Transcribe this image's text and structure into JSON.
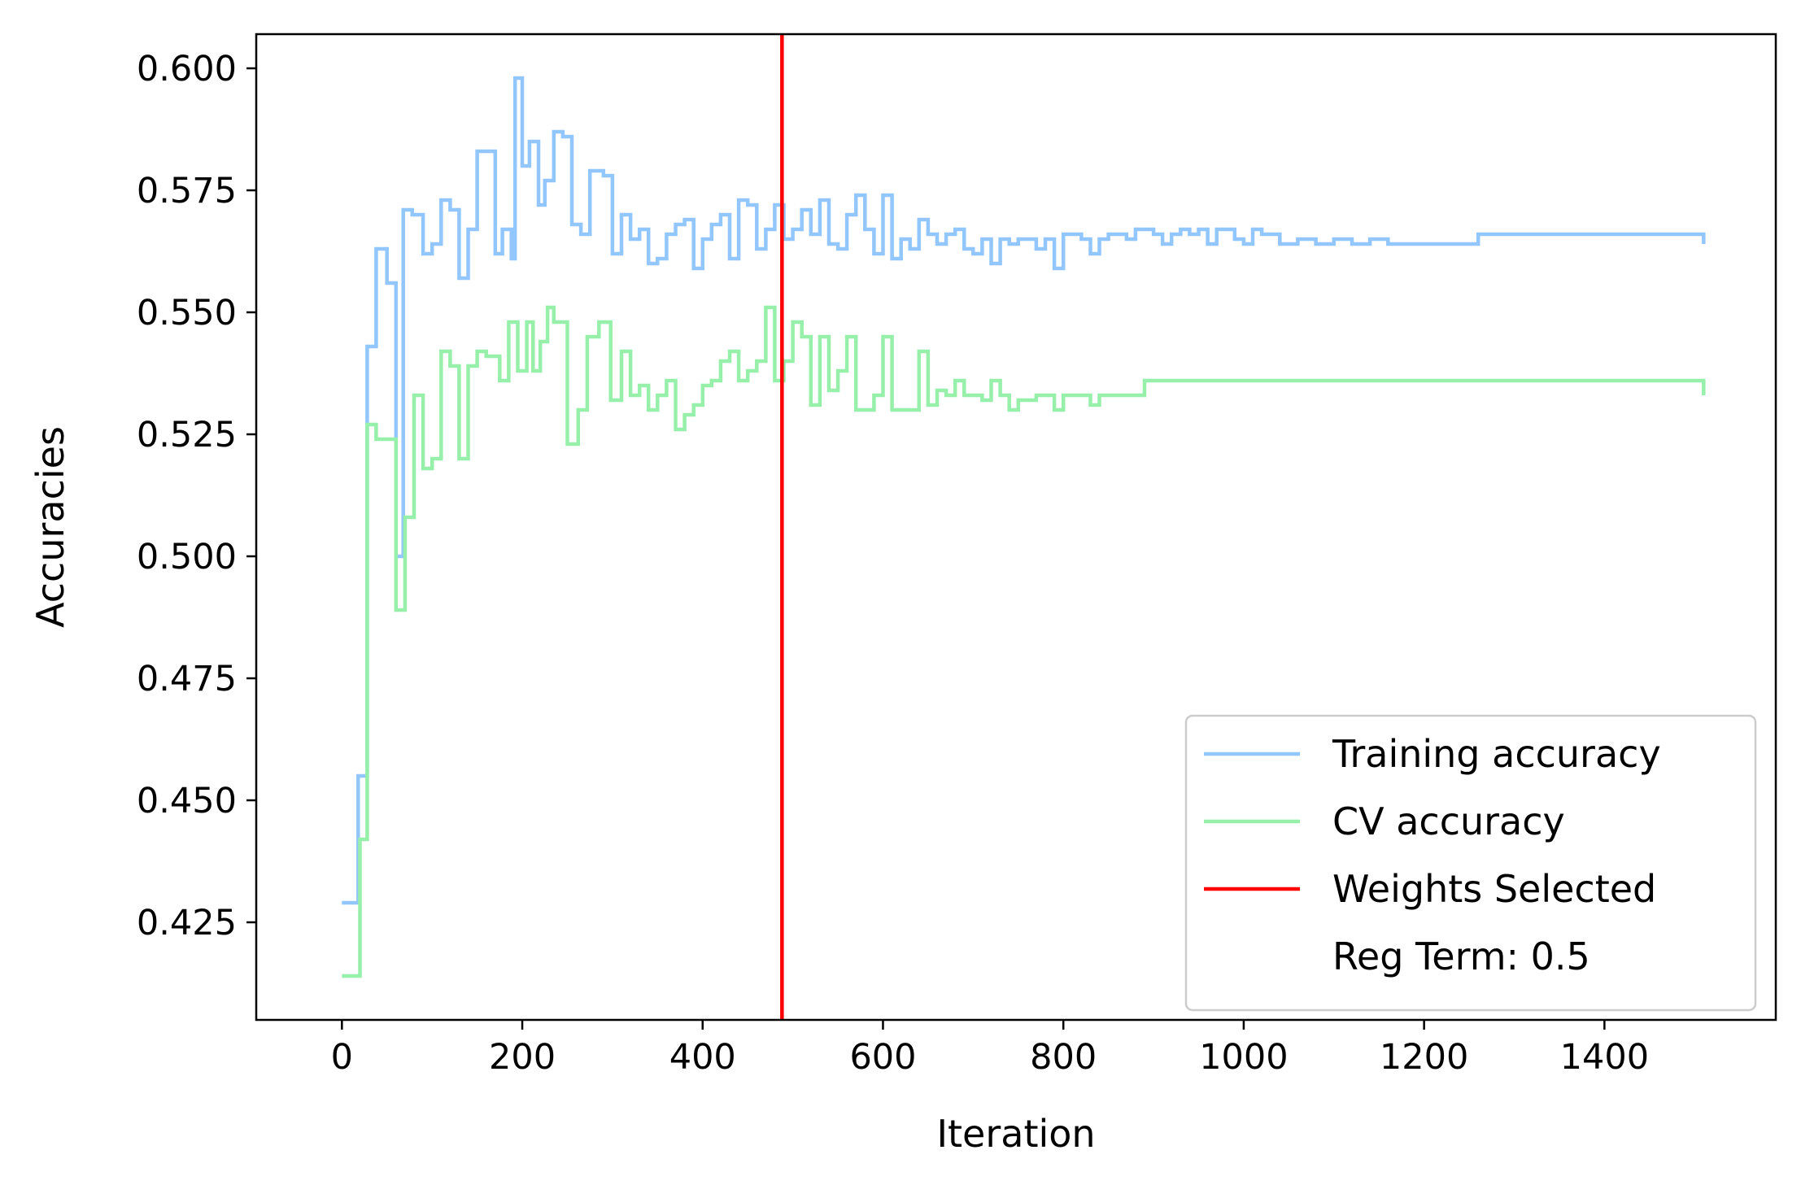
{
  "chart_data": {
    "type": "line",
    "title": "",
    "xlabel": "Iteration",
    "ylabel": "Accuracies",
    "xlim": [
      -95,
      1590
    ],
    "ylim": [
      0.405,
      0.607
    ],
    "xticks": [
      0,
      200,
      400,
      600,
      800,
      1000,
      1200,
      1400
    ],
    "xtick_labels": [
      "0",
      "200",
      "400",
      "600",
      "800",
      "1000",
      "1200",
      "1400"
    ],
    "yticks": [
      0.425,
      0.45,
      0.475,
      0.5,
      0.525,
      0.55,
      0.575,
      0.6
    ],
    "ytick_labels": [
      "0.425",
      "0.450",
      "0.475",
      "0.500",
      "0.525",
      "0.550",
      "0.575",
      "0.600"
    ],
    "grid": false,
    "legend_position": "bottom-right",
    "series": [
      {
        "name": "Training accuracy",
        "color": "#92c6ff",
        "drawstyle": "steps-post",
        "x": [
          0,
          18,
          28,
          38,
          50,
          60,
          68,
          78,
          90,
          100,
          110,
          120,
          130,
          140,
          150,
          170,
          178,
          188,
          192,
          200,
          208,
          218,
          225,
          235,
          245,
          255,
          265,
          275,
          290,
          300,
          310,
          320,
          330,
          340,
          350,
          360,
          370,
          380,
          390,
          400,
          410,
          420,
          430,
          440,
          450,
          460,
          470,
          480,
          490,
          500,
          510,
          520,
          530,
          540,
          550,
          560,
          570,
          580,
          590,
          600,
          610,
          620,
          630,
          640,
          650,
          660,
          670,
          680,
          690,
          700,
          710,
          720,
          730,
          740,
          750,
          760,
          770,
          780,
          790,
          800,
          810,
          820,
          830,
          840,
          850,
          860,
          870,
          880,
          890,
          900,
          910,
          920,
          930,
          940,
          950,
          960,
          970,
          980,
          990,
          1000,
          1010,
          1020,
          1040,
          1060,
          1080,
          1100,
          1120,
          1140,
          1160,
          1200,
          1260,
          1510
        ],
        "y": [
          0.429,
          0.455,
          0.543,
          0.563,
          0.556,
          0.5,
          0.571,
          0.57,
          0.562,
          0.564,
          0.573,
          0.571,
          0.557,
          0.567,
          0.583,
          0.562,
          0.567,
          0.561,
          0.598,
          0.58,
          0.585,
          0.572,
          0.577,
          0.587,
          0.586,
          0.568,
          0.566,
          0.579,
          0.578,
          0.562,
          0.57,
          0.565,
          0.567,
          0.56,
          0.561,
          0.566,
          0.568,
          0.569,
          0.559,
          0.565,
          0.568,
          0.57,
          0.561,
          0.573,
          0.572,
          0.563,
          0.567,
          0.572,
          0.565,
          0.567,
          0.571,
          0.566,
          0.573,
          0.564,
          0.563,
          0.57,
          0.574,
          0.567,
          0.562,
          0.574,
          0.561,
          0.565,
          0.563,
          0.569,
          0.566,
          0.564,
          0.566,
          0.567,
          0.563,
          0.562,
          0.565,
          0.56,
          0.565,
          0.564,
          0.565,
          0.565,
          0.563,
          0.565,
          0.559,
          0.566,
          0.566,
          0.565,
          0.562,
          0.565,
          0.566,
          0.566,
          0.565,
          0.567,
          0.567,
          0.566,
          0.564,
          0.566,
          0.567,
          0.566,
          0.567,
          0.564,
          0.567,
          0.567,
          0.565,
          0.564,
          0.567,
          0.566,
          0.564,
          0.565,
          0.564,
          0.565,
          0.564,
          0.565,
          0.564,
          0.564,
          0.566,
          0.564
        ]
      },
      {
        "name": "CV accuracy",
        "color": "#97f0aa",
        "drawstyle": "steps-post",
        "x": [
          0,
          20,
          28,
          38,
          60,
          70,
          80,
          90,
          100,
          110,
          120,
          130,
          140,
          150,
          160,
          175,
          185,
          195,
          205,
          212,
          220,
          228,
          235,
          250,
          262,
          272,
          285,
          298,
          310,
          320,
          330,
          340,
          350,
          360,
          370,
          380,
          390,
          400,
          410,
          420,
          430,
          440,
          450,
          460,
          470,
          480,
          490,
          500,
          510,
          520,
          530,
          540,
          550,
          560,
          570,
          580,
          590,
          600,
          610,
          620,
          630,
          640,
          650,
          660,
          670,
          680,
          690,
          700,
          710,
          720,
          730,
          740,
          750,
          760,
          770,
          780,
          790,
          800,
          810,
          820,
          830,
          840,
          850,
          860,
          870,
          880,
          890,
          1510
        ],
        "y": [
          0.414,
          0.442,
          0.527,
          0.524,
          0.489,
          0.508,
          0.533,
          0.518,
          0.52,
          0.542,
          0.539,
          0.52,
          0.539,
          0.542,
          0.541,
          0.536,
          0.548,
          0.538,
          0.548,
          0.538,
          0.544,
          0.551,
          0.548,
          0.523,
          0.53,
          0.545,
          0.548,
          0.532,
          0.542,
          0.533,
          0.535,
          0.53,
          0.533,
          0.536,
          0.526,
          0.529,
          0.531,
          0.535,
          0.536,
          0.54,
          0.542,
          0.536,
          0.538,
          0.54,
          0.551,
          0.536,
          0.54,
          0.548,
          0.545,
          0.531,
          0.545,
          0.534,
          0.538,
          0.545,
          0.53,
          0.53,
          0.533,
          0.545,
          0.53,
          0.53,
          0.53,
          0.542,
          0.531,
          0.534,
          0.533,
          0.536,
          0.533,
          0.533,
          0.532,
          0.536,
          0.533,
          0.53,
          0.532,
          0.532,
          0.533,
          0.533,
          0.53,
          0.533,
          0.533,
          0.533,
          0.531,
          0.533,
          0.533,
          0.533,
          0.533,
          0.533,
          0.536,
          0.533
        ]
      }
    ],
    "vline": {
      "name": "Weights Selected",
      "x": 488,
      "color": "#ff0000"
    },
    "legend": [
      {
        "label": "Training accuracy",
        "color": "#92c6ff"
      },
      {
        "label": "CV accuracy",
        "color": "#97f0aa"
      },
      {
        "label": "Weights Selected",
        "color": "#ff0000"
      },
      {
        "label": "Reg Term: 0.5",
        "color": "none"
      }
    ]
  }
}
